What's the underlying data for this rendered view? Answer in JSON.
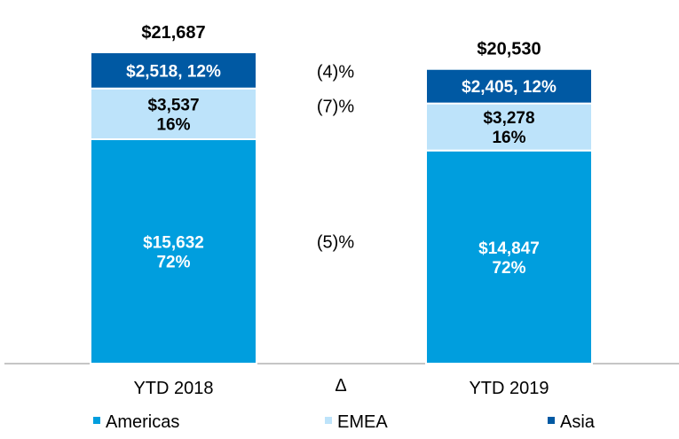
{
  "chart_data": {
    "type": "bar",
    "stacked": true,
    "categories": [
      "YTD 2018",
      "YTD 2019"
    ],
    "series": [
      {
        "name": "Americas",
        "color": "#009ede",
        "text_color": "#ffffff",
        "values": [
          15632,
          14847
        ],
        "labels": [
          [
            "$15,632",
            "72%"
          ],
          [
            "$14,847",
            "72%"
          ]
        ]
      },
      {
        "name": "EMEA",
        "color": "#bde3fa",
        "text_color": "#000000",
        "values": [
          3537,
          3278
        ],
        "labels": [
          [
            "$3,537",
            "16%"
          ],
          [
            "$3,278",
            "16%"
          ]
        ]
      },
      {
        "name": "Asia",
        "color": "#0059a3",
        "text_color": "#ffffff",
        "values": [
          2518,
          2405
        ],
        "labels": [
          [
            "$2,518, 12%"
          ],
          [
            "$2,405, 12%"
          ]
        ]
      }
    ],
    "totals": [
      "$21,687",
      "$20,530"
    ],
    "change_symbol": "Δ",
    "changes": [
      "(5)%",
      "(7)%",
      "(4)%"
    ],
    "ylim": [
      0,
      21687
    ],
    "legend_position": "bottom",
    "title": "",
    "xlabel": "",
    "ylabel": ""
  }
}
